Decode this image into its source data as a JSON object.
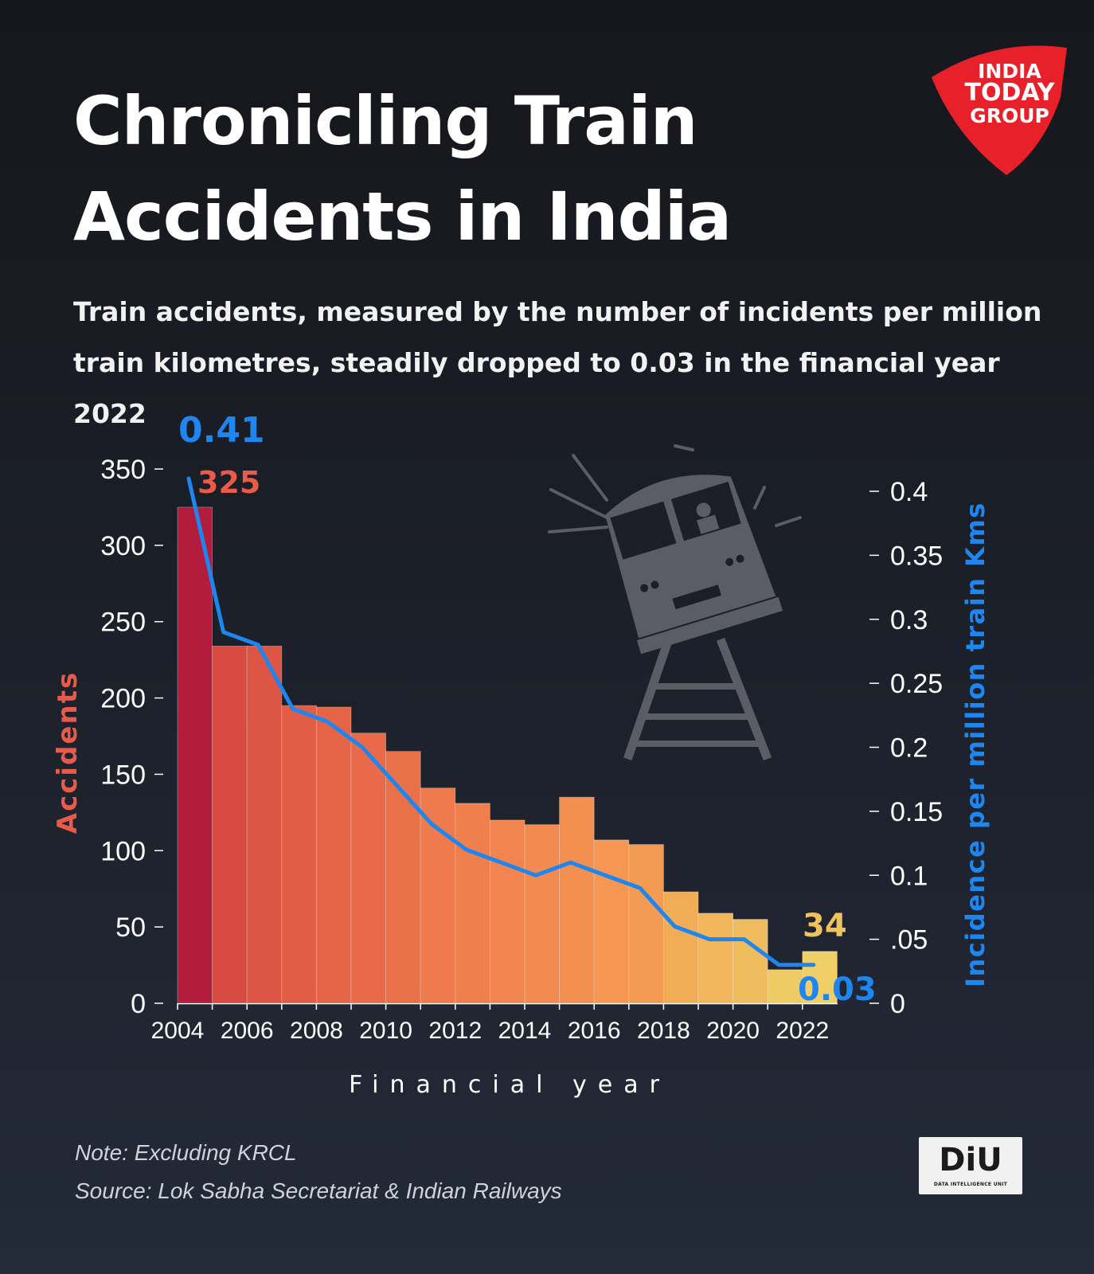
{
  "title_line1": "Chronicling Train",
  "title_line2": "Accidents in India",
  "subtitle_line1": "Train accidents, measured by the number of incidents per million",
  "subtitle_line2": "train kilometres, steadily dropped to 0.03 in the financial year 2022",
  "logo": {
    "line1": "INDIA",
    "line2": "TODAY",
    "line3": "GROUP",
    "color": "#e8202a"
  },
  "note": "Note: Excluding KRCL",
  "source": "Source:  Lok Sabha Secretariat & Indian Railways",
  "diu": {
    "label": "DiU",
    "sublabel": "DATA INTELLIGENCE UNIT"
  },
  "chart_data": {
    "type": "bar",
    "xlabel": "Financial year",
    "ylabel": "Accidents",
    "y2label": "Incidence per million train Kms",
    "years": [
      2004,
      2005,
      2006,
      2007,
      2008,
      2009,
      2010,
      2011,
      2012,
      2013,
      2014,
      2015,
      2016,
      2017,
      2018,
      2019,
      2020,
      2021,
      2022
    ],
    "x_ticks": [
      "2004",
      "2006",
      "2008",
      "2010",
      "2012",
      "2014",
      "2016",
      "2018",
      "2020",
      "2022"
    ],
    "ylim": [
      0,
      350
    ],
    "y_ticks": [
      "0",
      "50",
      "100",
      "150",
      "200",
      "250",
      "300",
      "350"
    ],
    "y2lim": [
      0,
      0.4
    ],
    "y2_ticks": [
      "0",
      ".05",
      "0.1",
      "0.15",
      "0.2",
      "0.25",
      "0.3",
      "0.35",
      "0.4"
    ],
    "series": [
      {
        "name": "Accidents",
        "kind": "bar",
        "values": [
          325,
          234,
          234,
          195,
          194,
          177,
          165,
          141,
          131,
          120,
          117,
          135,
          107,
          104,
          73,
          59,
          55,
          22,
          34
        ],
        "colors": [
          "#b41c3e",
          "#d84b42",
          "#dd5544",
          "#e25d45",
          "#e46448",
          "#e86a49",
          "#ea704a",
          "#ee7a4d",
          "#f07f4e",
          "#f2854f",
          "#f38a50",
          "#f48f52",
          "#f59652",
          "#f49b53",
          "#f1ad55",
          "#f1b55a",
          "#f0bd5e",
          "#efcb66",
          "#efcf66"
        ]
      },
      {
        "name": "Incidence per million train Kms",
        "kind": "line",
        "color": "#1e86f0",
        "values": [
          0.41,
          0.29,
          0.28,
          0.23,
          0.22,
          0.2,
          0.17,
          0.14,
          0.12,
          0.11,
          0.1,
          0.11,
          0.1,
          0.09,
          0.06,
          0.05,
          0.05,
          0.03,
          0.03
        ]
      }
    ],
    "annotations": [
      {
        "text": "0.41",
        "color": "#1e86f0"
      },
      {
        "text": "325",
        "color": "#e85a4a"
      },
      {
        "text": "34",
        "color": "#f0c25a"
      },
      {
        "text": "0.03",
        "color": "#1e86f0"
      }
    ],
    "colors": {
      "accidents_label": "#e85a4a",
      "incidence_label": "#1e86f0",
      "axis_text": "#ffffff",
      "illustration": "#5a5d66"
    }
  }
}
